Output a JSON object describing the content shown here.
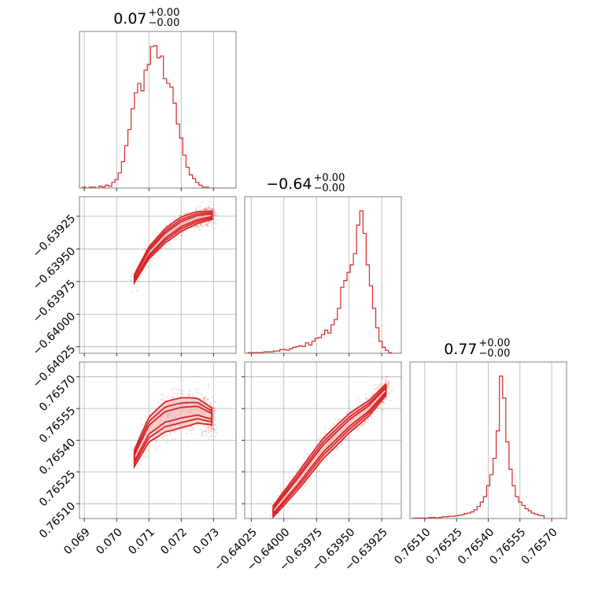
{
  "chart_data": {
    "type": "corner",
    "color": "#d62728",
    "fill_color": "#f3c4c4",
    "grid": true,
    "parameters": [
      {
        "title": "0.07",
        "sup": "+0.00",
        "sub": "−0.00",
        "ticks": [
          0.069,
          0.07,
          0.071,
          0.072,
          0.073
        ],
        "tick_labels": [
          "0.069",
          "0.070",
          "0.071",
          "0.072",
          "0.073"
        ],
        "range": [
          0.06885,
          0.0737
        ]
      },
      {
        "title": "−0.64",
        "sup": "+0.00",
        "sub": "−0.00",
        "ticks": [
          -0.64025,
          -0.64,
          -0.63975,
          -0.6395,
          -0.63925
        ],
        "tick_labels": [
          "−0.64025",
          "−0.64000",
          "−0.63975",
          "−0.63950",
          "−0.63925"
        ],
        "range": [
          -0.6403,
          -0.6391
        ]
      },
      {
        "title": "0.77",
        "sup": "+0.00",
        "sub": "−0.00",
        "ticks": [
          0.7651,
          0.76525,
          0.7654,
          0.76555,
          0.7657
        ],
        "tick_labels": [
          "0.76510",
          "0.76525",
          "0.76540",
          "0.76555",
          "0.76570"
        ],
        "range": [
          0.76503,
          0.76577
        ]
      }
    ],
    "histograms": [
      {
        "param": 0,
        "bin_start": 0.06885,
        "bin_width": 0.0001,
        "counts": [
          0,
          1,
          0,
          1,
          1,
          0,
          2,
          1,
          3,
          2,
          6,
          9,
          16,
          28,
          45,
          62,
          84,
          101,
          111,
          103,
          125,
          131,
          150,
          151,
          138,
          140,
          116,
          111,
          107,
          90,
          68,
          53,
          35,
          22,
          14,
          10,
          6,
          3,
          1,
          1,
          0,
          0,
          0,
          0,
          0,
          0,
          0,
          0,
          0
        ]
      },
      {
        "param": 1,
        "bin_start": -0.6403,
        "bin_width": 2.45e-05,
        "counts": [
          0,
          1,
          1,
          1,
          1,
          1,
          2,
          2,
          2,
          3,
          3,
          5,
          5,
          4,
          6,
          8,
          9,
          10,
          9,
          14,
          11,
          16,
          20,
          21,
          25,
          31,
          27,
          38,
          45,
          60,
          88,
          97,
          108,
          118,
          133,
          171,
          190,
          160,
          118,
          90,
          60,
          34,
          16,
          8,
          4,
          1,
          0,
          0,
          0
        ]
      },
      {
        "param": 2,
        "bin_start": 0.76503,
        "bin_width": 1.51e-05,
        "counts": [
          0,
          1,
          1,
          1,
          1,
          1,
          2,
          2,
          1,
          2,
          3,
          3,
          4,
          4,
          5,
          6,
          7,
          9,
          10,
          12,
          16,
          22,
          30,
          40,
          60,
          80,
          110,
          160,
          260,
          220,
          140,
          90,
          60,
          40,
          30,
          24,
          18,
          14,
          10,
          8,
          6,
          5,
          0,
          0,
          0,
          0,
          0,
          0,
          0
        ]
      }
    ],
    "scatter_panels": [
      {
        "x_param": 0,
        "y_param": 1,
        "ridge_x": [
          0.0705,
          0.071,
          0.0715,
          0.072,
          0.0725,
          0.073
        ],
        "ridge_y": [
          -0.63975,
          -0.63953,
          -0.6394,
          -0.63931,
          -0.63926,
          -0.63924
        ],
        "spread_x": 0.00022,
        "spread_y": 3.5e-05,
        "n_points": 900
      },
      {
        "x_param": 0,
        "y_param": 2,
        "ridge_x": [
          0.0705,
          0.071,
          0.0715,
          0.072,
          0.0725,
          0.073
        ],
        "ridge_y": [
          0.7653,
          0.76545,
          0.76551,
          0.76553,
          0.76554,
          0.76551
        ],
        "spread_x": 0.00022,
        "spread_y": 4.5e-05,
        "n_points": 900
      },
      {
        "x_param": 1,
        "y_param": 2,
        "ridge_x": [
          -0.6401,
          -0.6399,
          -0.6397,
          -0.6395,
          -0.63935,
          -0.6392
        ],
        "ridge_y": [
          0.76505,
          0.7652,
          0.76536,
          0.76548,
          0.76555,
          0.76565
        ],
        "spread_x": 4.5e-05,
        "spread_y": 3e-05,
        "n_points": 900
      }
    ]
  }
}
